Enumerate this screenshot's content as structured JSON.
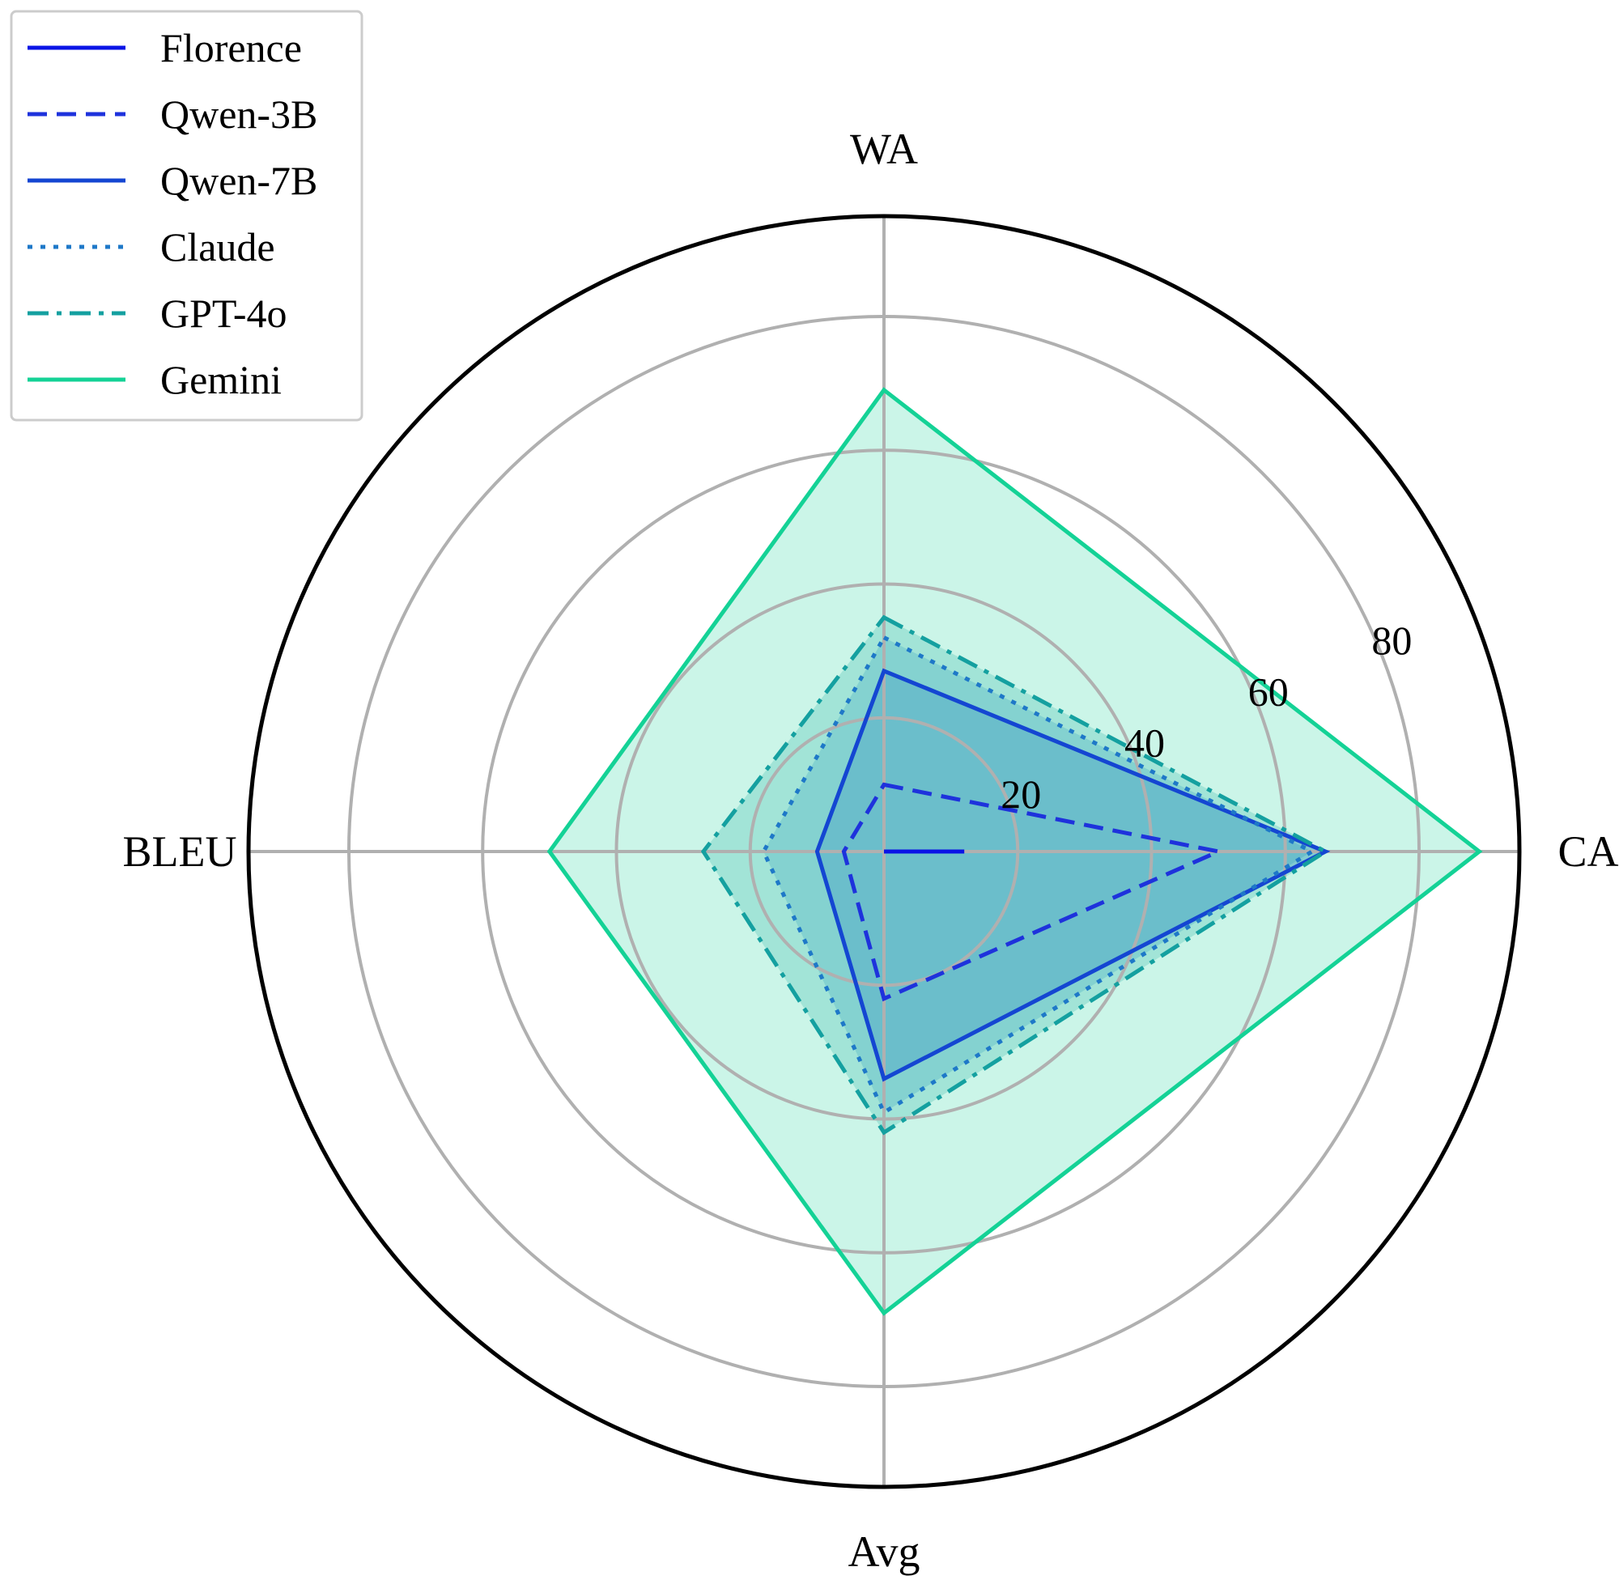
{
  "chart_data": {
    "type": "radar",
    "axes": [
      "WA",
      "CA",
      "Avg",
      "BLEU"
    ],
    "radial_ticks": [
      20,
      40,
      60,
      80
    ],
    "rmax": 95,
    "grid": true,
    "legend_position": "top-left",
    "series": [
      {
        "name": "Florence",
        "values": [
          0,
          12,
          0,
          0
        ],
        "color": "#0a14e6",
        "dash": "solid",
        "fill": false
      },
      {
        "name": "Qwen-3B",
        "values": [
          10,
          50,
          22,
          6
        ],
        "color": "#1e32dc",
        "dash": "dashed",
        "fill": false
      },
      {
        "name": "Qwen-7B",
        "values": [
          27,
          66,
          34,
          10
        ],
        "color": "#1446d2",
        "dash": "solid",
        "fill": true
      },
      {
        "name": "Claude",
        "values": [
          32,
          64,
          39,
          18
        ],
        "color": "#1e78c8",
        "dash": "dotted",
        "fill": true
      },
      {
        "name": "GPT-4o",
        "values": [
          35,
          66,
          42,
          27
        ],
        "color": "#14a0a0",
        "dash": "dashdot",
        "fill": true
      },
      {
        "name": "Gemini",
        "values": [
          69,
          89,
          69,
          50
        ],
        "color": "#14d296",
        "dash": "solid",
        "fill": true
      }
    ]
  }
}
